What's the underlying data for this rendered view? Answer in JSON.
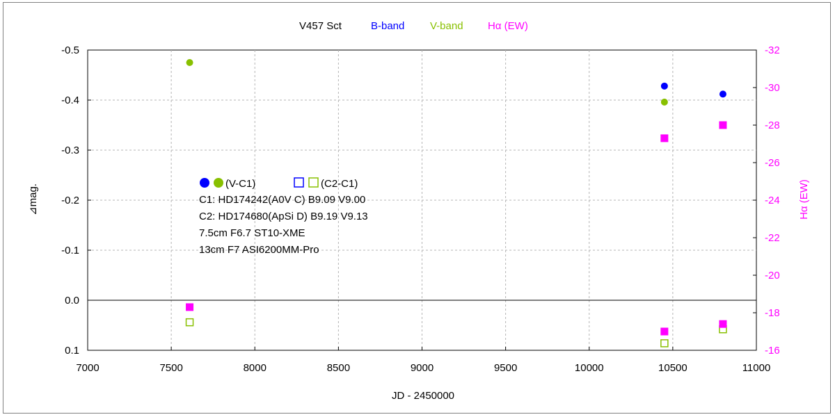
{
  "chart_data": {
    "type": "scatter",
    "title": "V457 Sct",
    "legend_top": [
      {
        "label": "B-band",
        "color": "#0000ff"
      },
      {
        "label": "V-band",
        "color": "#88c000"
      },
      {
        "label": "Hα (EW)",
        "color": "#ff00ff"
      }
    ],
    "xlabel": "JD - 2450000",
    "ylabel": "⊿mag.",
    "y2label": "Hα (EW)",
    "xlim": [
      7000,
      11000
    ],
    "ylim": [
      -0.5,
      0.1
    ],
    "y2lim": [
      -32,
      -16
    ],
    "xticks": [
      "7000",
      "7500",
      "8000",
      "8500",
      "9000",
      "9500",
      "10000",
      "10500",
      "11000"
    ],
    "yticks": [
      "-0.5",
      "-0.4",
      "-0.3",
      "-0.2",
      "-0.1",
      "0.0",
      "0.1"
    ],
    "y2ticks": [
      "-32",
      "-30",
      "-28",
      "-26",
      "-24",
      "-22",
      "-20",
      "-18",
      "-16"
    ],
    "grid": true,
    "zero_line": 0.0,
    "series": [
      {
        "name": "B-band (V-C1)",
        "axis": "left",
        "marker": "filled-circle",
        "color": "#0000ff",
        "points": [
          {
            "x": 10450,
            "y": -0.428
          },
          {
            "x": 10800,
            "y": -0.412
          }
        ]
      },
      {
        "name": "V-band (V-C1)",
        "axis": "left",
        "marker": "filled-circle",
        "color": "#88c000",
        "points": [
          {
            "x": 7610,
            "y": -0.475
          },
          {
            "x": 10450,
            "y": -0.396
          }
        ]
      },
      {
        "name": "B-band (C2-C1)",
        "axis": "left",
        "marker": "open-square",
        "color": "#0000ff",
        "points": []
      },
      {
        "name": "V-band (C2-C1)",
        "axis": "left",
        "marker": "open-square",
        "color": "#88c000",
        "points": [
          {
            "x": 7610,
            "y": 0.044
          },
          {
            "x": 10450,
            "y": 0.086
          },
          {
            "x": 10800,
            "y": 0.058
          }
        ]
      },
      {
        "name": "Hα (EW)",
        "axis": "right",
        "marker": "filled-square",
        "color": "#ff00ff",
        "points": [
          {
            "x": 7610,
            "y": -18.3
          },
          {
            "x": 10450,
            "y": -27.3
          },
          {
            "x": 10800,
            "y": -28.0
          },
          {
            "x": 10450,
            "y": -17.0
          },
          {
            "x": 10800,
            "y": -17.4
          }
        ]
      }
    ],
    "annotation": {
      "legend_labels": [
        "(V-C1)",
        "(C2-C1)"
      ],
      "lines": [
        "C1: HD174242(A0V C)  B9.09   V9.00",
        "C2: HD174680(ApSi D)  B9.19   V9.13",
        "7.5cm F6.7 ST10-XME",
        "13cm F7 ASI6200MM-Pro"
      ]
    }
  }
}
